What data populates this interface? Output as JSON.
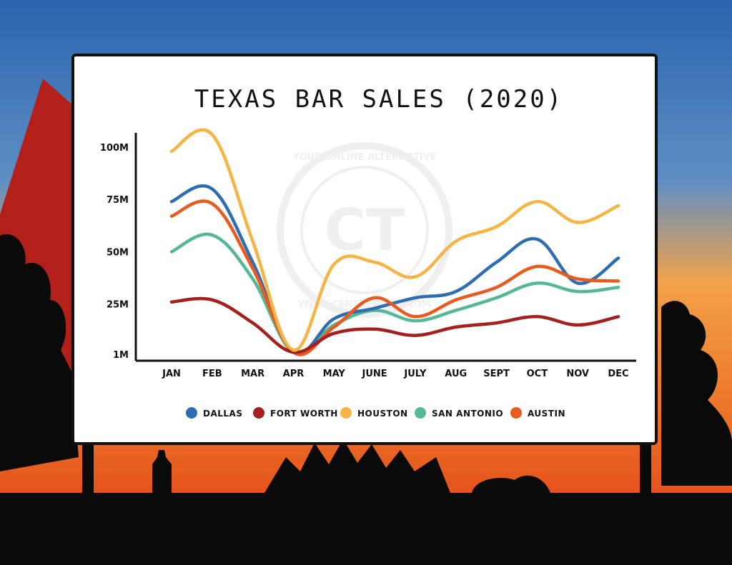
{
  "colors": {
    "sky_top": "#2a6ab5",
    "sky_mid": "#5f8fc4",
    "horizon": "#f2a24a",
    "ground_glow": "#e5511c",
    "silhouette": "#0a0a0a",
    "mountain": "#b3201a"
  },
  "watermark": {
    "arc_top": "YOUR ONLINE ALTERNATIVE",
    "arc_bottom": "WWW.CENTREPOINT.COM"
  },
  "chart_data": {
    "type": "line",
    "title": "TEXAS BAR SALES (2020)",
    "xlabel": "",
    "ylabel": "",
    "categories": [
      "JAN",
      "FEB",
      "MAR",
      "APR",
      "MAY",
      "JUNE",
      "JULY",
      "AUG",
      "SEPT",
      "OCT",
      "NOV",
      "DEC"
    ],
    "y_ticks": [
      {
        "value": 100,
        "label": "100M"
      },
      {
        "value": 75,
        "label": "75M"
      },
      {
        "value": 50,
        "label": "50M"
      },
      {
        "value": 25,
        "label": "25M"
      },
      {
        "value": 1,
        "label": "1M"
      }
    ],
    "ylim": [
      1,
      100
    ],
    "grid": false,
    "legend_position": "bottom",
    "series": [
      {
        "name": "DALLAS",
        "color": "#2e6db4",
        "values": [
          74,
          80,
          45,
          2,
          18,
          23,
          28,
          31,
          45,
          56,
          35,
          47
        ]
      },
      {
        "name": "FORT WORTH",
        "color": "#a3201e",
        "values": [
          26,
          27,
          16,
          2,
          11,
          13,
          10,
          14,
          16,
          19,
          15,
          19
        ]
      },
      {
        "name": "HOUSTON",
        "color": "#f6b445",
        "values": [
          98,
          106,
          55,
          3,
          44,
          45,
          38,
          55,
          62,
          74,
          64,
          72
        ]
      },
      {
        "name": "SAN ANTONIO",
        "color": "#56b796",
        "values": [
          50,
          58,
          37,
          2,
          15,
          22,
          17,
          22,
          28,
          35,
          31,
          33
        ]
      },
      {
        "name": "AUSTIN",
        "color": "#e95a1f",
        "values": [
          67,
          73,
          42,
          2,
          14,
          28,
          19,
          27,
          33,
          43,
          37,
          36
        ]
      }
    ]
  }
}
